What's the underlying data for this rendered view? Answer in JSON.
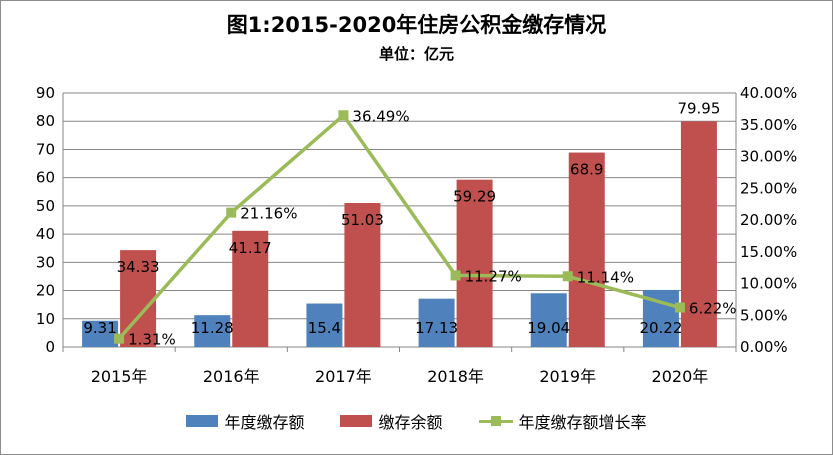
{
  "chart_data": {
    "type": "bar",
    "title": "图1:2015-2020年住房公积金缴存情况",
    "subtitle": "单位：亿元",
    "categories": [
      "2015年",
      "2016年",
      "2017年",
      "2018年",
      "2019年",
      "2020年"
    ],
    "series": [
      {
        "name": "年度缴存额",
        "type": "bar",
        "axis": "left",
        "color": "#4f81bd",
        "values": [
          9.31,
          11.28,
          15.4,
          17.13,
          19.04,
          20.22
        ],
        "labels": [
          "9.31",
          "11.28",
          "15.4",
          "17.13",
          "19.04",
          "20.22"
        ]
      },
      {
        "name": "缴存余额",
        "type": "bar",
        "axis": "left",
        "color": "#c0504d",
        "values": [
          34.33,
          41.17,
          51.03,
          59.29,
          68.9,
          79.95
        ],
        "labels": [
          "34.33",
          "41.17",
          "51.03",
          "59.29",
          "68.9",
          "79.95"
        ]
      },
      {
        "name": "年度缴存额增长率",
        "type": "line",
        "axis": "right",
        "color": "#9bbb59",
        "values": [
          1.31,
          21.16,
          36.49,
          11.27,
          11.14,
          6.22
        ],
        "labels": [
          "1.31%",
          "21.16%",
          "36.49%",
          "11.27%",
          "11.14%",
          "6.22%"
        ]
      }
    ],
    "y_left": {
      "min": 0,
      "max": 90,
      "ticks": [
        "0",
        "10",
        "20",
        "30",
        "40",
        "50",
        "60",
        "70",
        "80",
        "90"
      ]
    },
    "y_right": {
      "min": 0,
      "max": 40,
      "unit": "%",
      "ticks": [
        "0.00%",
        "5.00%",
        "10.00%",
        "15.00%",
        "20.00%",
        "25.00%",
        "30.00%",
        "35.00%",
        "40.00%"
      ]
    },
    "grid": true,
    "legend_position": "bottom"
  }
}
